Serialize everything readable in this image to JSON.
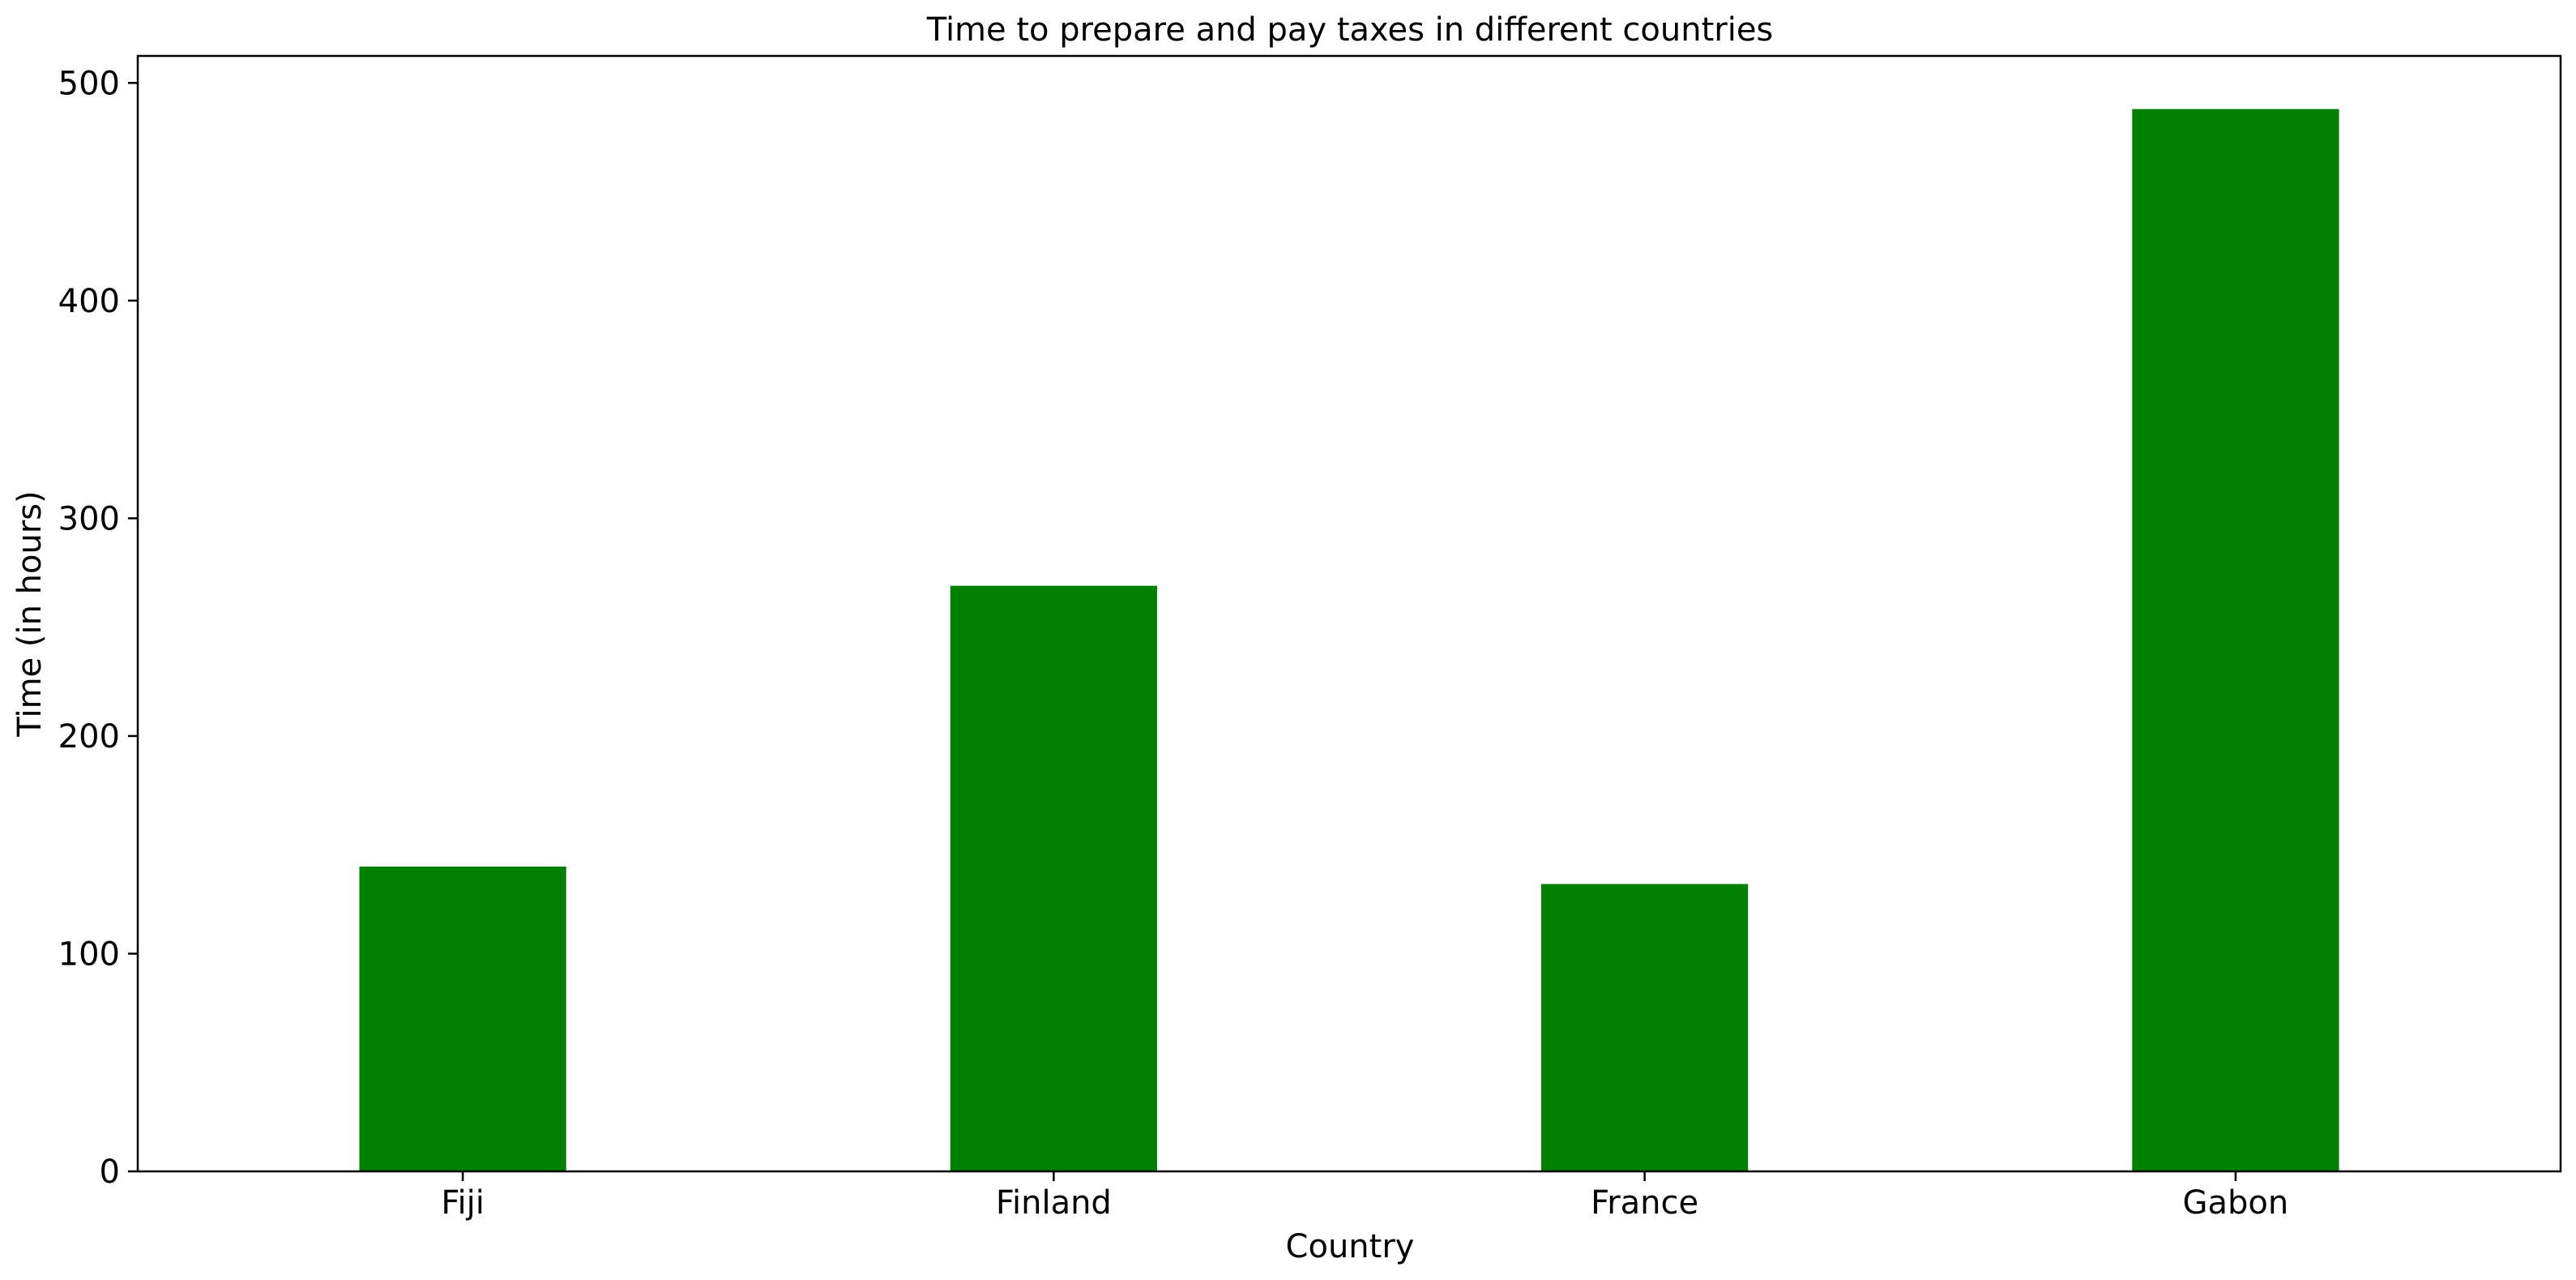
{
  "chart_data": {
    "type": "bar",
    "title": "Time to prepare and pay taxes in different countries",
    "xlabel": "Country",
    "ylabel": "Time (in hours)",
    "categories": [
      "Fiji",
      "Finland",
      "France",
      "Gabon"
    ],
    "values": [
      140,
      269,
      132,
      488
    ],
    "ylim": [
      0,
      512.4
    ],
    "yticks": [
      0,
      100,
      200,
      300,
      400,
      500
    ],
    "grid": false,
    "legend": "none",
    "bar_color": "#008000"
  }
}
